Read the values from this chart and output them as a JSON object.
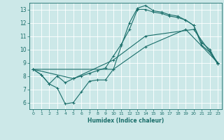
{
  "xlabel": "Humidex (Indice chaleur)",
  "xlim": [
    -0.5,
    23.5
  ],
  "ylim": [
    5.5,
    13.5
  ],
  "yticks": [
    6,
    7,
    8,
    9,
    10,
    11,
    12,
    13
  ],
  "xticks": [
    0,
    1,
    2,
    3,
    4,
    5,
    6,
    7,
    8,
    9,
    10,
    11,
    12,
    13,
    14,
    15,
    16,
    17,
    18,
    19,
    20,
    21,
    22,
    23
  ],
  "bg_color": "#cce8e8",
  "line_color": "#1a6e6a",
  "grid_color": "#ffffff",
  "line1_x": [
    0,
    1,
    2,
    3,
    4,
    5,
    6,
    7,
    8,
    9,
    10,
    11,
    12,
    13,
    14,
    15,
    16,
    17,
    18,
    19,
    20,
    21,
    22,
    23
  ],
  "line1_y": [
    8.5,
    8.1,
    7.4,
    7.1,
    5.9,
    6.0,
    6.8,
    7.6,
    7.7,
    7.7,
    8.5,
    10.3,
    12.0,
    13.1,
    13.3,
    12.9,
    12.8,
    12.6,
    12.5,
    12.2,
    11.8,
    10.5,
    10.0,
    8.9
  ],
  "line2_x": [
    0,
    1,
    2,
    3,
    4,
    5,
    6,
    7,
    8,
    9,
    10,
    11,
    12,
    13,
    14,
    15,
    16,
    17,
    18,
    19,
    20,
    21,
    22,
    23
  ],
  "line2_y": [
    8.5,
    8.1,
    7.4,
    8.0,
    7.5,
    7.8,
    8.0,
    8.2,
    8.4,
    8.6,
    9.5,
    10.4,
    11.5,
    13.0,
    13.0,
    12.8,
    12.7,
    12.5,
    12.4,
    12.2,
    11.8,
    10.3,
    9.8,
    8.9
  ],
  "line3_x": [
    0,
    5,
    10,
    14,
    20,
    23
  ],
  "line3_y": [
    8.5,
    7.8,
    9.2,
    11.0,
    11.5,
    9.0
  ],
  "line4_x": [
    0,
    10,
    14,
    19,
    23
  ],
  "line4_y": [
    8.5,
    8.5,
    10.2,
    11.5,
    9.0
  ]
}
